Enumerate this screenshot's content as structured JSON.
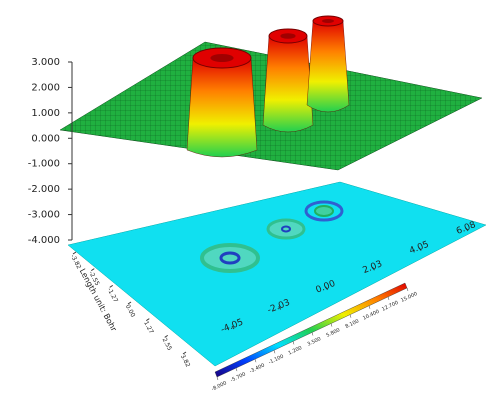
{
  "chart_data": {
    "type": "surface3d",
    "axis_label": "Length unit: Bohr",
    "zlim": [
      -4,
      3
    ],
    "zticks": [
      {
        "value": -4,
        "label": "-4.000"
      },
      {
        "value": -3,
        "label": "-3.000"
      },
      {
        "value": -2,
        "label": "-2.000"
      },
      {
        "value": -1,
        "label": "-1.000"
      },
      {
        "value": 0,
        "label": "0.000"
      },
      {
        "value": 1,
        "label": "1.000"
      },
      {
        "value": 2,
        "label": "2.000"
      },
      {
        "value": 3,
        "label": "3.000"
      }
    ],
    "xlim": [
      -3.82,
      3.82
    ],
    "xticks": [
      -3.82,
      -2.55,
      -1.27,
      {
        "value": 0,
        "label": "0.00"
      },
      1.27,
      2.55,
      3.82
    ],
    "ylim": [
      -4.05,
      6.08
    ],
    "yticks": [
      -4.05,
      -2.03,
      {
        "value": 0,
        "label": "0.00"
      },
      2.03,
      4.05,
      6.08
    ],
    "colormap": [
      "#1a0080",
      "#0040ff",
      "#00e0ff",
      "#20d050",
      "#f0f000",
      "#ff8000",
      "#e00000"
    ],
    "colorbar": {
      "lim": [
        -8,
        15
      ],
      "ticks": [
        {
          "value": -8,
          "label": "-8.000"
        },
        {
          "value": -5.7,
          "label": "-5.700"
        },
        {
          "value": -3.4,
          "label": "-3.400"
        },
        {
          "value": -1.1,
          "label": "-1.100"
        },
        {
          "value": 1.2,
          "label": "1.200"
        },
        {
          "value": 3.5,
          "label": "3.500"
        },
        {
          "value": 5.8,
          "label": "5.800"
        },
        {
          "value": 8.1,
          "label": "8.100"
        },
        {
          "value": 10.4,
          "label": "10.400"
        },
        {
          "value": 12.7,
          "label": "12.700"
        },
        {
          "value": 15,
          "label": "15.000"
        }
      ]
    }
  }
}
